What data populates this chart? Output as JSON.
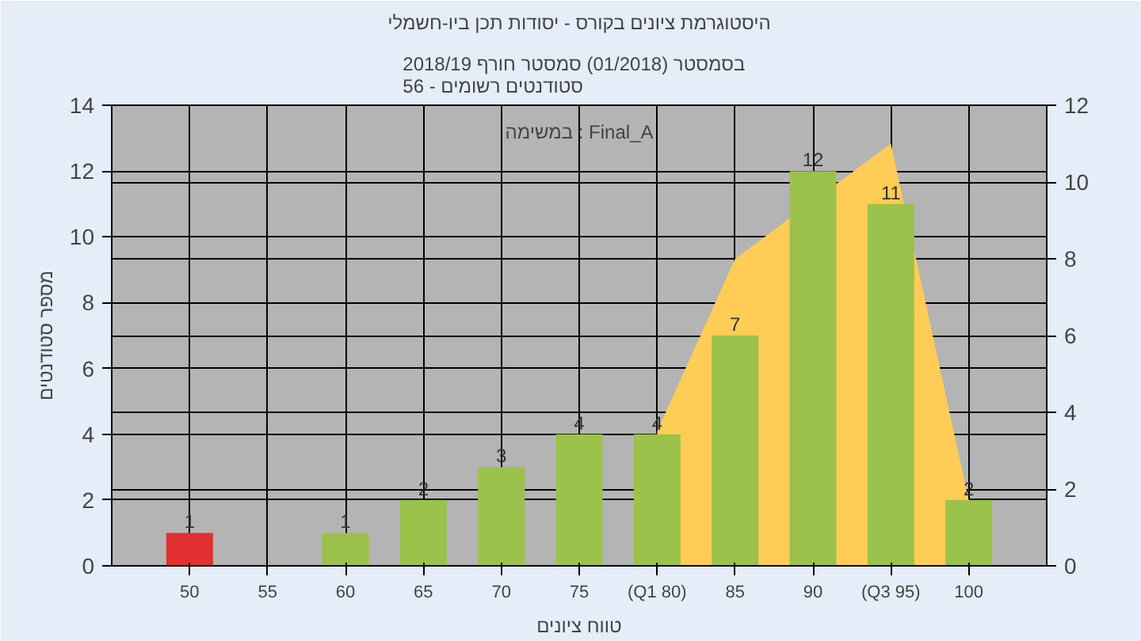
{
  "chart_data": {
    "type": "bar",
    "title": "היסטוגרמת ציונים בקורס - יסודות תכן ביו-חשמלי",
    "subtitle": "בסמסטר  (01/2018)  סמסטר חורף 2018/19\nסטודנטים רשומים - 56",
    "xlabel": "טווח ציונים",
    "ylabel": "מספר סטודנטים",
    "annotations": [
      "במשימה : Final_A"
    ],
    "categories": [
      "50",
      "55",
      "60",
      "65",
      "70",
      "75",
      "(Q1 80)",
      "85",
      "90",
      "(Q3 95)",
      "100"
    ],
    "series": [
      {
        "type": "area",
        "axis": "y2",
        "color": "#ffcc55",
        "values": [
          null,
          null,
          null,
          null,
          null,
          null,
          3.5,
          8,
          null,
          11,
          1.7
        ]
      },
      {
        "value_labels": [
          "1",
          null,
          "1",
          "2",
          "3",
          "4",
          "4",
          "7",
          "12",
          "11",
          "2"
        ],
        "colors": [
          "#e03030",
          "#9bc24a",
          "#9bc24a",
          "#9bc24a",
          "#9bc24a",
          "#9bc24a",
          "#9bc24a",
          "#9bc24a",
          "#9bc24a",
          "#9bc24a",
          "#9bc24a"
        ],
        "values": [
          1,
          null,
          1,
          2,
          3,
          4,
          4,
          7,
          12,
          11,
          2
        ]
      }
    ],
    "ylim": [
      0,
      14
    ],
    "yticks": [
      0,
      2,
      4,
      6,
      8,
      10,
      12,
      14
    ],
    "y2lim": [
      0,
      12
    ],
    "y2ticks": [
      0,
      2,
      4,
      6,
      8,
      10,
      12
    ],
    "grid": true
  }
}
